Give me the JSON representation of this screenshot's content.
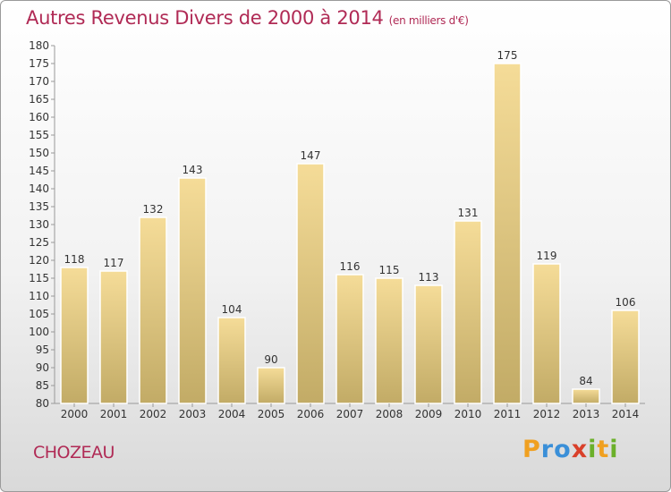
{
  "title": {
    "main": "Autres Revenus Divers de 2000 à 2014",
    "unit": "(en milliers d'€)"
  },
  "location": "CHOZEAU",
  "brand": {
    "text": "Proxiti",
    "letters": [
      "P",
      "r",
      "o",
      "x",
      "i",
      "t",
      "i"
    ]
  },
  "colors": {
    "title": "#b02a55",
    "bar_light": "#f5dc98",
    "bar_dark": "#c2ab66",
    "label": "#333333"
  },
  "chart_data": {
    "type": "bar",
    "title": "Autres Revenus Divers de 2000 à 2014",
    "xlabel": "",
    "ylabel": "",
    "categories": [
      "2000",
      "2001",
      "2002",
      "2003",
      "2004",
      "2005",
      "2006",
      "2007",
      "2008",
      "2009",
      "2010",
      "2011",
      "2012",
      "2013",
      "2014"
    ],
    "values": [
      118,
      117,
      132,
      143,
      104,
      90,
      147,
      116,
      115,
      113,
      131,
      175,
      119,
      84,
      106
    ],
    "ylim": [
      80,
      180
    ],
    "yticks": [
      80,
      85,
      90,
      95,
      100,
      105,
      110,
      115,
      120,
      125,
      130,
      135,
      140,
      145,
      150,
      155,
      160,
      165,
      170,
      175,
      180
    ],
    "grid": false,
    "data_labels": true
  }
}
